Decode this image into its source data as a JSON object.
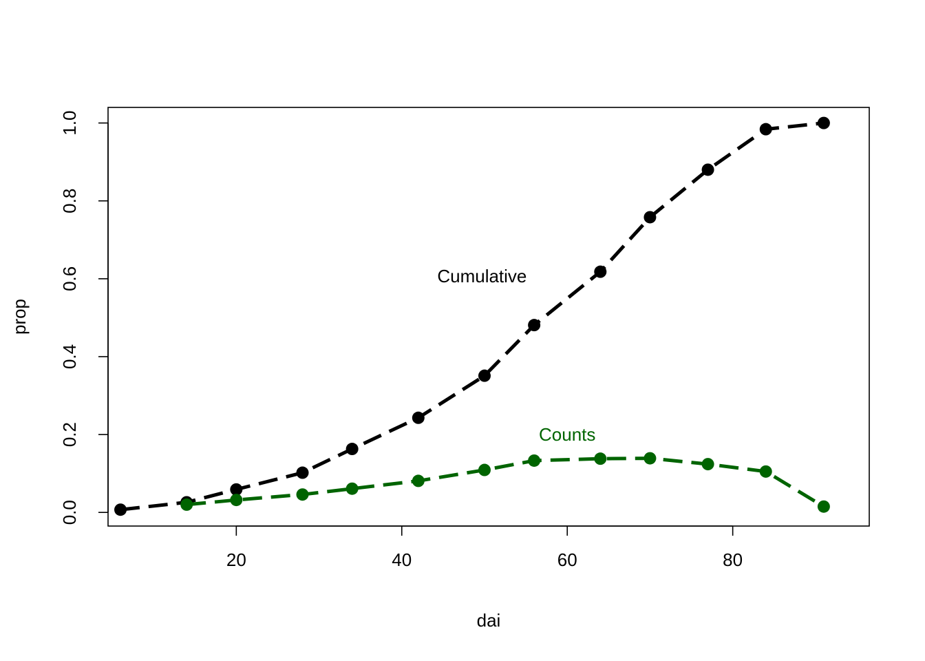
{
  "chart_data": {
    "type": "line",
    "xlabel": "dai",
    "ylabel": "prop",
    "xlim": [
      4.5,
      96.5
    ],
    "ylim": [
      -0.035,
      1.04
    ],
    "xticks": [
      "20",
      "40",
      "60",
      "80"
    ],
    "xtick_values": [
      20,
      40,
      60,
      80
    ],
    "yticks": [
      "0.0",
      "0.2",
      "0.4",
      "0.6",
      "0.8",
      "1.0"
    ],
    "ytick_values": [
      0,
      0.2,
      0.4,
      0.6,
      0.8,
      1.0
    ],
    "grid": false,
    "legend": "none",
    "series": [
      {
        "name": "Cumulative",
        "color": "#000000",
        "line_style": "dashed",
        "marker": "filled-circle",
        "x": [
          6,
          14,
          20,
          28,
          34,
          42,
          50,
          56,
          64,
          70,
          77,
          84,
          91
        ],
        "y": [
          0.007,
          0.026,
          0.059,
          0.102,
          0.163,
          0.243,
          0.351,
          0.481,
          0.618,
          0.758,
          0.88,
          0.984,
          1.0
        ]
      },
      {
        "name": "Counts",
        "color": "#006400",
        "line_style": "dashed",
        "marker": "filled-circle",
        "x": [
          14,
          20,
          28,
          34,
          42,
          50,
          56,
          64,
          70,
          77,
          84,
          91
        ],
        "y": [
          0.02,
          0.032,
          0.046,
          0.061,
          0.081,
          0.109,
          0.133,
          0.138,
          0.139,
          0.124,
          0.105,
          0.015
        ]
      }
    ],
    "annotations": [
      {
        "text": "Cumulative",
        "x": 49.7,
        "y": 0.607,
        "color": "#000000"
      },
      {
        "text": "Counts",
        "x": 60,
        "y": 0.2,
        "color": "#006400"
      }
    ]
  }
}
